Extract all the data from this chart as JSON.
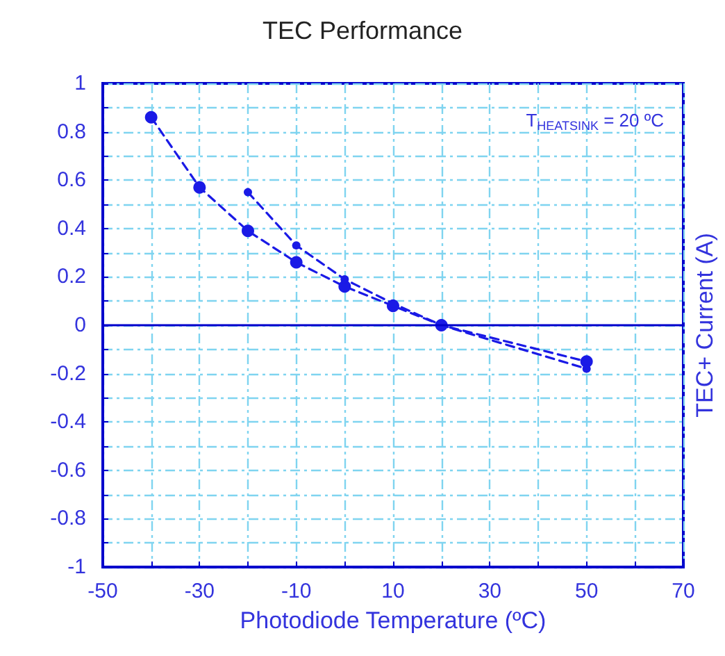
{
  "chart_data": {
    "type": "line",
    "title": "TEC Performance",
    "xlabel": "Photodiode Temperature (ºC)",
    "ylabel": "TEC+ Current (A)",
    "annotations": [
      "T$_{HEATSINK}$ = 20 ºC"
    ],
    "series": [
      {
        "color": "#1a1ae6",
        "x": [
          -40,
          -30,
          -20,
          -10,
          0,
          10,
          20,
          50
        ],
        "values": [
          0.86,
          0.57,
          0.39,
          0.26,
          0.16,
          0.08,
          0,
          -0.15
        ]
      },
      {
        "color": "#1a1ae6",
        "x": [
          -20,
          -10,
          0,
          10,
          20,
          50
        ],
        "values": [
          0.55,
          0.33,
          0.19,
          0.09,
          0,
          -0.18
        ]
      }
    ],
    "xlim": [
      -50,
      70
    ],
    "xticks": [
      -50,
      {
        "value": -40,
        "label": null
      },
      -30,
      {
        "value": -20,
        "label": null
      },
      -10,
      {
        "value": 0,
        "label": null
      },
      10,
      {
        "value": 20,
        "label": null
      },
      30,
      {
        "value": 40,
        "label": null
      },
      50,
      {
        "value": 60,
        "label": null
      },
      70
    ],
    "ylim": [
      -1,
      1
    ],
    "yticks": [
      -1,
      {
        "value": -0.9,
        "label": null
      },
      -0.8,
      {
        "value": -0.7,
        "label": null
      },
      -0.6,
      {
        "value": -0.5,
        "label": null
      },
      -0.4,
      {
        "value": -0.3,
        "label": null
      },
      -0.2,
      {
        "value": -0.1,
        "label": null
      },
      0,
      {
        "value": 0.1,
        "label": null
      },
      0.2,
      {
        "value": 0.3,
        "label": null
      },
      0.4,
      {
        "value": 0.5,
        "label": null
      },
      0.6,
      {
        "value": 0.7,
        "label": null
      },
      0.8,
      {
        "value": 0.9,
        "label": null
      },
      1
    ],
    "ref_lines": [
      {
        "axis": "y",
        "value": 0,
        "color": "#0000cc",
        "line_style": "solid"
      }
    ],
    "grid": true,
    "marker": "circle",
    "line_style": "dashed"
  }
}
